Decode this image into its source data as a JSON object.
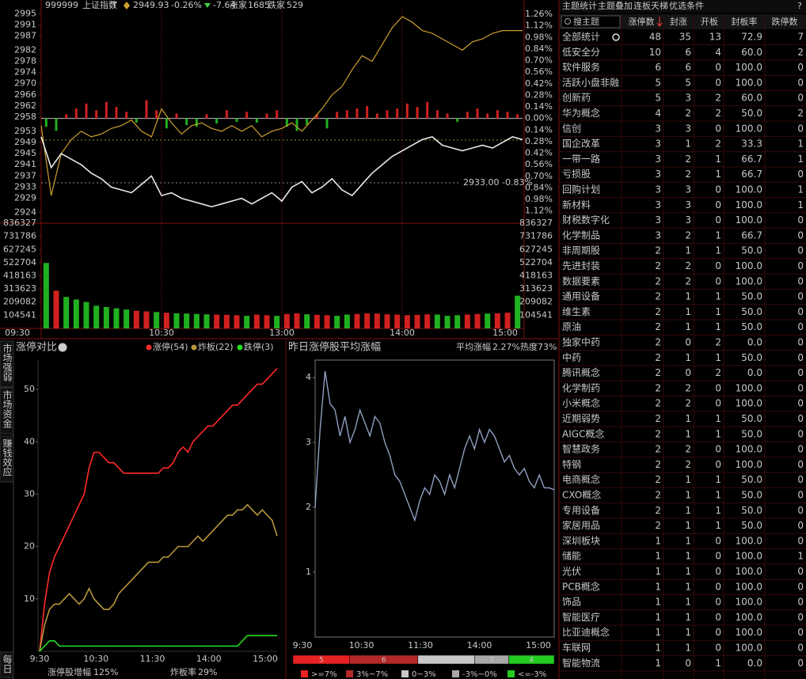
{
  "header": {
    "code": "999999",
    "name": "上证指数",
    "flag": "T",
    "price": "2949.93",
    "change_pct": "-0.26%",
    "change": "-7.64",
    "up_label": "涨家",
    "up_count": "1685",
    "down_label": "跌家",
    "down_count": "529"
  },
  "intraday": {
    "price_ylim": [
      2922.1,
      2995.4
    ],
    "price_ticks": [
      2995,
      2991,
      2987,
      2982,
      2978,
      2974,
      2970,
      2966,
      2962,
      2958,
      2953,
      2949,
      2945,
      2941,
      2937,
      2933,
      2929,
      2924
    ],
    "pct_ylim": [
      -1.2,
      1.28
    ],
    "pct_ticks": [
      {
        "value": 1.26,
        "label": "1.26%"
      },
      {
        "value": 1.12,
        "label": "1.12%"
      },
      {
        "value": 0.98,
        "label": "0.98%"
      },
      {
        "value": 0.84,
        "label": "0.84%"
      },
      {
        "value": 0.7,
        "label": "0.70%"
      },
      {
        "value": 0.56,
        "label": "0.56%"
      },
      {
        "value": 0.42,
        "label": "0.42%"
      },
      {
        "value": 0.28,
        "label": "0.28%"
      },
      {
        "value": 0.14,
        "label": "0.14%"
      },
      {
        "value": 0,
        "label": "0.00%"
      },
      {
        "value": -0.14,
        "label": "0.14%"
      },
      {
        "value": -0.28,
        "label": "0.28%"
      },
      {
        "value": -0.42,
        "label": "0.42%"
      },
      {
        "value": -0.56,
        "label": "0.56%"
      },
      {
        "value": -0.7,
        "label": "0.70%"
      },
      {
        "value": -0.84,
        "label": "0.84%"
      },
      {
        "value": -0.98,
        "label": "0.98%"
      },
      {
        "value": -1.12,
        "label": "1.12%"
      }
    ],
    "volume_ylim": [
      0,
      836327
    ],
    "volume_ticks": [
      836327,
      731786,
      627245,
      522704,
      418163,
      313623,
      209082,
      104541
    ],
    "x_labels": [
      "09:30",
      "10:30",
      "13:00",
      "14:00",
      "15:00"
    ],
    "price_line": {
      "color": "#e8e8e8",
      "values": [
        2951,
        2940,
        2945,
        2943,
        2941,
        2938,
        2936,
        2933,
        2932,
        2931,
        2934,
        2937,
        2930,
        2931,
        2929,
        2928,
        2927,
        2926,
        2927,
        2928,
        2929,
        2927,
        2929,
        2931,
        2928,
        2933,
        2935,
        2931,
        2933,
        2936,
        2932,
        2930,
        2934,
        2938,
        2941,
        2944,
        2946,
        2948,
        2950,
        2951,
        2948,
        2947,
        2946,
        2947,
        2948,
        2947,
        2949,
        2951,
        2950
      ]
    },
    "avg_line": {
      "color": "#d0a030",
      "values": [
        2955,
        2930,
        2945,
        2950,
        2953,
        2951,
        2952,
        2954,
        2955,
        2957,
        2953,
        2951,
        2961,
        2956,
        2952,
        2955,
        2956,
        2954,
        2953,
        2955,
        2953,
        2955,
        2951,
        2953,
        2954,
        2956,
        2953,
        2957,
        2961,
        2966,
        2969,
        2975,
        2980,
        2978,
        2984,
        2990,
        2994,
        2992,
        2989,
        2988,
        2986,
        2984,
        2982,
        2985,
        2986,
        2988,
        2989,
        2989,
        2989
      ]
    },
    "breadth_bars": [
      -0.1,
      -0.15,
      0.05,
      0.12,
      0.18,
      0.1,
      0.2,
      0.14,
      0.08,
      -0.05,
      0.22,
      0.1,
      -0.12,
      0.06,
      -0.08,
      -0.1,
      0.05,
      -0.06,
      0.1,
      -0.04,
      0.08,
      -0.05,
      0.06,
      0.1,
      -0.1,
      -0.15,
      -0.08,
      0.05,
      -0.12,
      0.08,
      0.1,
      0.12,
      0.15,
      0.06,
      0.1,
      0.12,
      0.18,
      0.14,
      0.2,
      0.1,
      0.06,
      -0.04,
      0.08,
      0.12,
      0.06,
      0.1,
      0.08,
      0.05
    ],
    "volume": [
      520000,
      300000,
      250000,
      230000,
      210000,
      180000,
      170000,
      160000,
      150000,
      140000,
      135000,
      130000,
      125000,
      120000,
      118000,
      115000,
      112000,
      110000,
      108000,
      105000,
      100000,
      110000,
      105000,
      100000,
      115000,
      120000,
      112000,
      108000,
      105000,
      100000,
      110000,
      115000,
      120000,
      118000,
      112000,
      110000,
      105000,
      108000,
      112000,
      110000,
      100000,
      105000,
      110000,
      115000,
      118000,
      120000,
      125000,
      260000
    ],
    "cursor_label": "2933.00 -0.83%"
  },
  "side_tabs": [
    "市场强弱",
    "市场资金",
    "赚钱效应",
    "每日"
  ],
  "limit_chart": {
    "title": "涨停对比",
    "ylim": [
      0,
      55.6
    ],
    "yticks": [
      10,
      20,
      30,
      40,
      50
    ],
    "x_labels": [
      "9:30",
      "10:30",
      "11:30",
      "14:00",
      "15:00"
    ],
    "series": [
      {
        "name": "涨停(54)",
        "color": "#ff2a2a",
        "values": [
          0,
          9,
          15,
          18,
          20,
          22,
          24,
          26,
          28,
          30,
          35,
          38,
          38,
          37,
          36,
          36,
          35,
          34,
          34,
          34,
          34,
          34,
          34,
          34,
          34,
          35,
          35,
          36,
          38,
          39,
          38,
          40,
          41,
          42,
          43,
          43,
          44,
          45,
          46,
          47,
          47,
          48,
          49,
          50,
          51,
          51,
          52,
          53,
          54
        ]
      },
      {
        "name": "炸板(22)",
        "color": "#b8963a",
        "values": [
          0,
          5,
          8,
          9,
          9,
          10,
          11,
          10,
          9,
          10,
          12,
          10,
          9,
          8,
          8,
          9,
          11,
          12,
          13,
          14,
          15,
          16,
          17,
          17,
          17,
          18,
          18,
          19,
          20,
          20,
          20,
          21,
          22,
          21,
          22,
          23,
          24,
          25,
          26,
          26,
          27,
          27,
          28,
          27,
          26,
          27,
          26,
          25,
          22
        ]
      },
      {
        "name": "跌停(3)",
        "color": "#22e022",
        "values": [
          0,
          1,
          2,
          2,
          1,
          1,
          1,
          1,
          1,
          1,
          1,
          1,
          1,
          1,
          1,
          1,
          1,
          1,
          1,
          1,
          1,
          1,
          1,
          1,
          1,
          1,
          1,
          1,
          1,
          1,
          1,
          1,
          1,
          1,
          1,
          1,
          1,
          1,
          1,
          1,
          1,
          2,
          3,
          3,
          3,
          3,
          3,
          3,
          3
        ]
      }
    ],
    "footer": [
      {
        "label": "涨停股增幅",
        "value": "125%"
      },
      {
        "label": "炸板率",
        "value": "29%"
      }
    ]
  },
  "yesterday_chart": {
    "title": "昨日涨停股平均涨幅",
    "avg_label": "平均涨幅",
    "avg_value": "2.27%",
    "heat": "热度73%",
    "color": "#8f9fc0",
    "ylim": [
      0,
      4.27
    ],
    "yticks": [
      1,
      2,
      3,
      4
    ],
    "x_labels": [
      "9:30",
      "10:30",
      "11:30",
      "14:00",
      "15:00"
    ],
    "values": [
      2.0,
      3.2,
      4.1,
      3.6,
      3.5,
      3.1,
      3.4,
      3.0,
      3.2,
      3.5,
      3.3,
      3.1,
      3.4,
      3.3,
      3.0,
      2.8,
      2.5,
      2.4,
      2.2,
      2.0,
      1.8,
      2.1,
      2.3,
      2.2,
      2.5,
      2.4,
      2.2,
      2.5,
      2.3,
      2.6,
      2.9,
      3.1,
      2.9,
      3.2,
      3.0,
      3.2,
      3.1,
      2.9,
      2.7,
      2.8,
      2.6,
      2.5,
      2.6,
      2.4,
      2.3,
      2.5,
      2.3,
      2.3,
      2.27
    ],
    "distribution": [
      {
        "label": ">=7%",
        "color": "#e82222",
        "count": 5
      },
      {
        "label": "3%~7%",
        "color": "#b42828",
        "count": 6
      },
      {
        "label": "0~3%",
        "color": "#c8c8c8",
        "count": 5
      },
      {
        "label": "-3%~0%",
        "color": "#a8a8a8",
        "count": 3
      },
      {
        "label": "<=-3%",
        "color": "#22cc22",
        "count": 4
      }
    ]
  },
  "theme_table": {
    "tabs": [
      "主题统计",
      "主题叠加",
      "连板天梯",
      "优选条件"
    ],
    "help": "?",
    "search": "搜主题",
    "columns": [
      "涨停数",
      "封涨",
      "开板",
      "封板率",
      "跌停数"
    ],
    "rows": [
      [
        "全部统计",
        "48",
        "35",
        "13",
        "72.9",
        "7"
      ],
      [
        "低安全分",
        "10",
        "6",
        "4",
        "60.0",
        "2"
      ],
      [
        "软件服务",
        "6",
        "6",
        "0",
        "100.0",
        "0"
      ],
      [
        "活跃小盘非融",
        "5",
        "5",
        "0",
        "100.0",
        "0"
      ],
      [
        "创新药",
        "5",
        "3",
        "2",
        "60.0",
        "0"
      ],
      [
        "华为概念",
        "4",
        "2",
        "2",
        "50.0",
        "2"
      ],
      [
        "信创",
        "3",
        "3",
        "0",
        "100.0",
        "0"
      ],
      [
        "国企改革",
        "3",
        "1",
        "2",
        "33.3",
        "1"
      ],
      [
        "一带一路",
        "3",
        "2",
        "1",
        "66.7",
        "1"
      ],
      [
        "亏损股",
        "3",
        "2",
        "1",
        "66.7",
        "0"
      ],
      [
        "回购计划",
        "3",
        "3",
        "0",
        "100.0",
        "1"
      ],
      [
        "新材料",
        "3",
        "3",
        "0",
        "100.0",
        "1"
      ],
      [
        "财税数字化",
        "3",
        "3",
        "0",
        "100.0",
        "0"
      ],
      [
        "化学制品",
        "3",
        "2",
        "1",
        "66.7",
        "0"
      ],
      [
        "非周期股",
        "2",
        "1",
        "1",
        "50.0",
        "0"
      ],
      [
        "先进封装",
        "2",
        "2",
        "0",
        "100.0",
        "0"
      ],
      [
        "数据要素",
        "2",
        "2",
        "0",
        "100.0",
        "0"
      ],
      [
        "通用设备",
        "2",
        "1",
        "1",
        "50.0",
        "0"
      ],
      [
        "维生素",
        "2",
        "1",
        "1",
        "50.0",
        "0"
      ],
      [
        "原油",
        "2",
        "1",
        "1",
        "50.0",
        "0"
      ],
      [
        "独家中药",
        "2",
        "0",
        "2",
        "0.0",
        "0"
      ],
      [
        "中药",
        "2",
        "1",
        "1",
        "50.0",
        "0"
      ],
      [
        "腾讯概念",
        "2",
        "0",
        "2",
        "0.0",
        "0"
      ],
      [
        "化学制药",
        "2",
        "2",
        "0",
        "100.0",
        "0"
      ],
      [
        "小米概念",
        "2",
        "2",
        "0",
        "100.0",
        "0"
      ],
      [
        "近期弱势",
        "2",
        "1",
        "1",
        "50.0",
        "0"
      ],
      [
        "AIGC概念",
        "2",
        "1",
        "1",
        "50.0",
        "0"
      ],
      [
        "智慧政务",
        "2",
        "2",
        "0",
        "100.0",
        "0"
      ],
      [
        "特钢",
        "2",
        "2",
        "0",
        "100.0",
        "0"
      ],
      [
        "电商概念",
        "2",
        "1",
        "1",
        "50.0",
        "0"
      ],
      [
        "CXO概念",
        "2",
        "1",
        "1",
        "50.0",
        "0"
      ],
      [
        "专用设备",
        "2",
        "1",
        "1",
        "50.0",
        "0"
      ],
      [
        "家居用品",
        "2",
        "1",
        "1",
        "50.0",
        "0"
      ],
      [
        "深圳板块",
        "1",
        "1",
        "0",
        "100.0",
        "0"
      ],
      [
        "储能",
        "1",
        "1",
        "0",
        "100.0",
        "1"
      ],
      [
        "光伏",
        "1",
        "1",
        "0",
        "100.0",
        "0"
      ],
      [
        "PCB概念",
        "1",
        "1",
        "0",
        "100.0",
        "0"
      ],
      [
        "饰品",
        "1",
        "1",
        "0",
        "100.0",
        "0"
      ],
      [
        "智能医疗",
        "1",
        "1",
        "0",
        "100.0",
        "0"
      ],
      [
        "比亚迪概念",
        "1",
        "1",
        "0",
        "100.0",
        "0"
      ],
      [
        "车联网",
        "1",
        "1",
        "0",
        "100.0",
        "0"
      ],
      [
        "智能物流",
        "1",
        "0",
        "1",
        "0.0",
        "0"
      ]
    ]
  }
}
